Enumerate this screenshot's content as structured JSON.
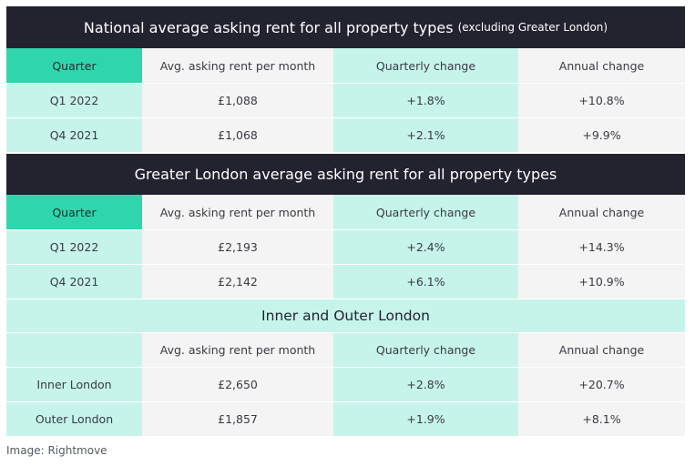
{
  "national": {
    "title": "National average asking rent for all property types",
    "subtitle": "(excluding Greater London)",
    "headers": [
      "Quarter",
      "Avg. asking rent per month",
      "Quarterly change",
      "Annual change"
    ],
    "rows": [
      [
        "Q1 2022",
        "£1,088",
        "+1.8%",
        "+10.8%"
      ],
      [
        "Q4 2021",
        "£1,068",
        "+2.1%",
        "+9.9%"
      ]
    ]
  },
  "greater_london": {
    "title": "Greater London average asking rent for all property types",
    "headers": [
      "Quarter",
      "Avg. asking rent per month",
      "Quarterly change",
      "Annual change"
    ],
    "rows": [
      [
        "Q1 2022",
        "£2,193",
        "+2.4%",
        "+14.3%"
      ],
      [
        "Q4 2021",
        "£2,142",
        "+6.1%",
        "+10.9%"
      ]
    ]
  },
  "inner_outer": {
    "title": "Inner and Outer London",
    "headers": [
      "",
      "Avg. asking rent per month",
      "Quarterly change",
      "Annual change"
    ],
    "rows": [
      [
        "Inner London",
        "£2,650",
        "+2.8%",
        "+20.7%"
      ],
      [
        "Outer London",
        "£1,857",
        "+1.9%",
        "+8.1%"
      ]
    ]
  },
  "caption": "Image: Rightmove"
}
